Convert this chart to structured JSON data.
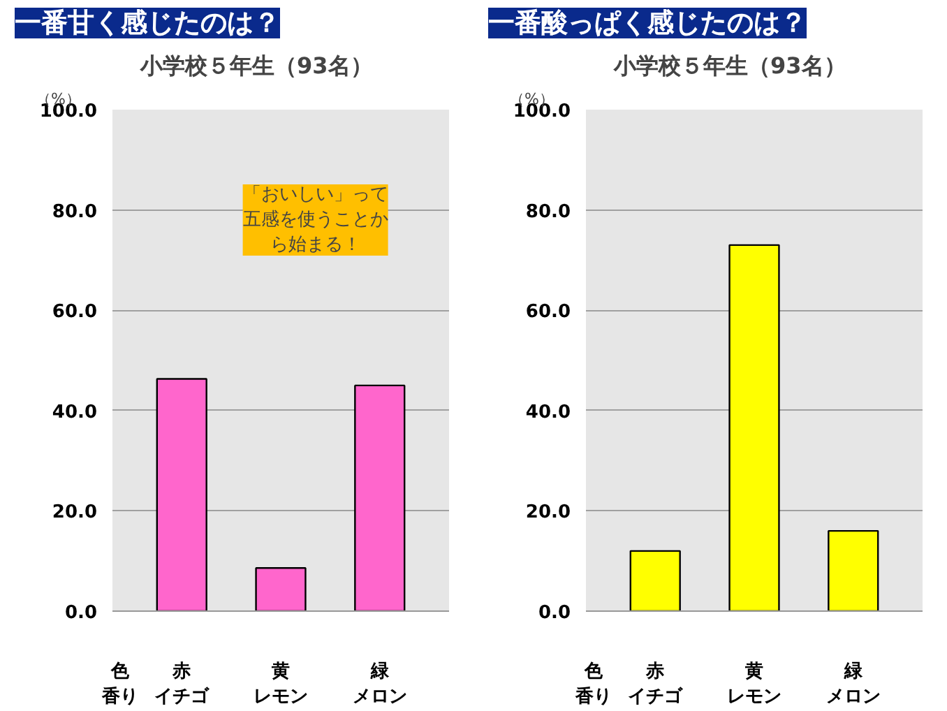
{
  "chart_data": [
    {
      "type": "bar",
      "title": "一番甘く感じたのは？",
      "subtitle": "小学校５年生（93名）",
      "ylabel": "（%）",
      "xlabel": "色香り",
      "categories": [
        "赤イチゴ",
        "黄レモン",
        "緑メロン"
      ],
      "values": [
        46.3,
        8.6,
        45
      ],
      "color": "#ff66cc",
      "ylim": [
        0,
        100
      ],
      "yticks": [
        {
          "value": 0,
          "label": "0.0"
        },
        {
          "value": 20,
          "label": "20.0"
        },
        {
          "value": 40,
          "label": "40.0"
        },
        {
          "value": 60,
          "label": "60.0"
        },
        {
          "value": 80,
          "label": "80.0"
        },
        {
          "value": 100,
          "label": "100.0"
        }
      ],
      "grid": "y",
      "annotations": [
        "「おいしい」って五感を使うことから始まる！"
      ]
    },
    {
      "type": "bar",
      "title": "一番酸っぱく感じたのは？",
      "subtitle": "小学校５年生（93名）",
      "ylabel": "（%）",
      "xlabel": "色香り",
      "categories": [
        "赤イチゴ",
        "黄レモン",
        "緑メロン"
      ],
      "values": [
        12,
        73,
        16
      ],
      "color": "#ffff00",
      "ylim": [
        0,
        100
      ],
      "yticks": [
        {
          "value": 0,
          "label": "0.0"
        },
        {
          "value": 20,
          "label": "20.0"
        },
        {
          "value": 40,
          "label": "40.0"
        },
        {
          "value": 60,
          "label": "60.0"
        },
        {
          "value": 80,
          "label": "80.0"
        },
        {
          "value": 100,
          "label": "100.0"
        }
      ],
      "grid": "y"
    }
  ]
}
